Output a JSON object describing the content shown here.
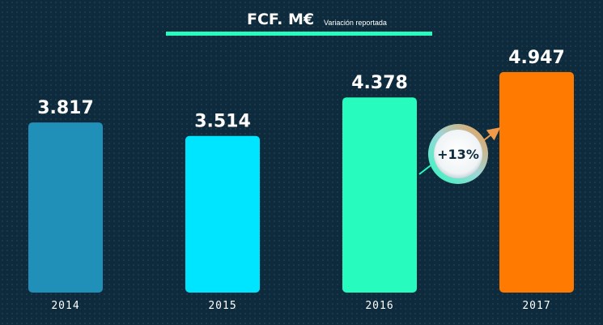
{
  "chart_data": {
    "type": "bar",
    "title": "FCF. M€",
    "subtitle": "Variación reportada",
    "categories": [
      "2014",
      "2015",
      "2016",
      "2017"
    ],
    "values": [
      3817,
      3514,
      4378,
      4947
    ],
    "value_labels": [
      "3.817",
      "3.514",
      "4.378",
      "4.947"
    ],
    "bar_colors": [
      "#2190b8",
      "#00e5ff",
      "#27fbbd",
      "#ff7a00"
    ],
    "title_underline_color": "#27fbbd",
    "annotation": {
      "text": "+13%",
      "from": "2016",
      "to": "2017",
      "arrow_colors": [
        "#27fbbd",
        "#f29a4a"
      ]
    },
    "ylim": [
      0,
      5400
    ],
    "grid": false,
    "legend": "none"
  }
}
